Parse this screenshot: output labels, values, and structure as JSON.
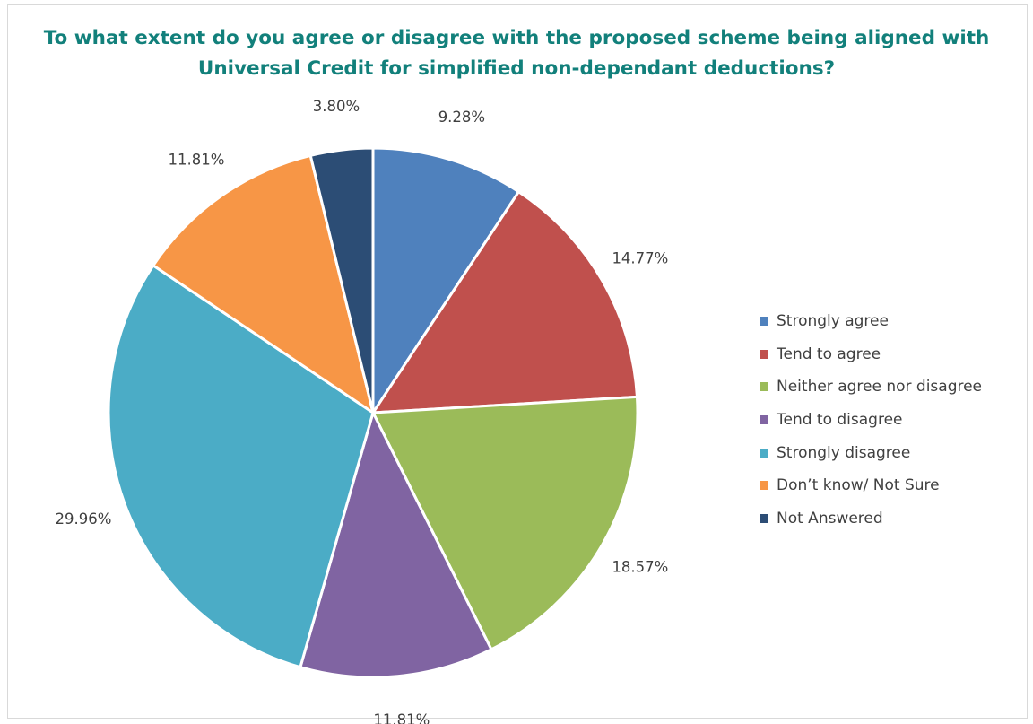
{
  "chart_data": {
    "type": "pie",
    "title_lines": [
      "To what extent do you agree or disagree with the proposed scheme being aligned with",
      "Universal Credit for simplified non-dependant deductions?"
    ],
    "categories": [
      "Strongly agree",
      "Tend to agree",
      "Neither agree nor disagree",
      "Tend to disagree",
      "Strongly disagree",
      "Don’t know/ Not Sure",
      "Not Answered"
    ],
    "values": [
      9.28,
      14.77,
      18.57,
      11.81,
      29.96,
      11.81,
      3.8
    ],
    "data_labels": [
      "9.28%",
      "14.77%",
      "18.57%",
      "11.81%",
      "29.96%",
      "11.81%",
      "3.80%"
    ],
    "colors": [
      "#4f81bd",
      "#c0504d",
      "#9bbb59",
      "#8064a2",
      "#4bacc6",
      "#f79646",
      "#2c4d75"
    ],
    "start_angle": "12 o'clock",
    "direction": "clockwise",
    "legend_position": "right"
  }
}
